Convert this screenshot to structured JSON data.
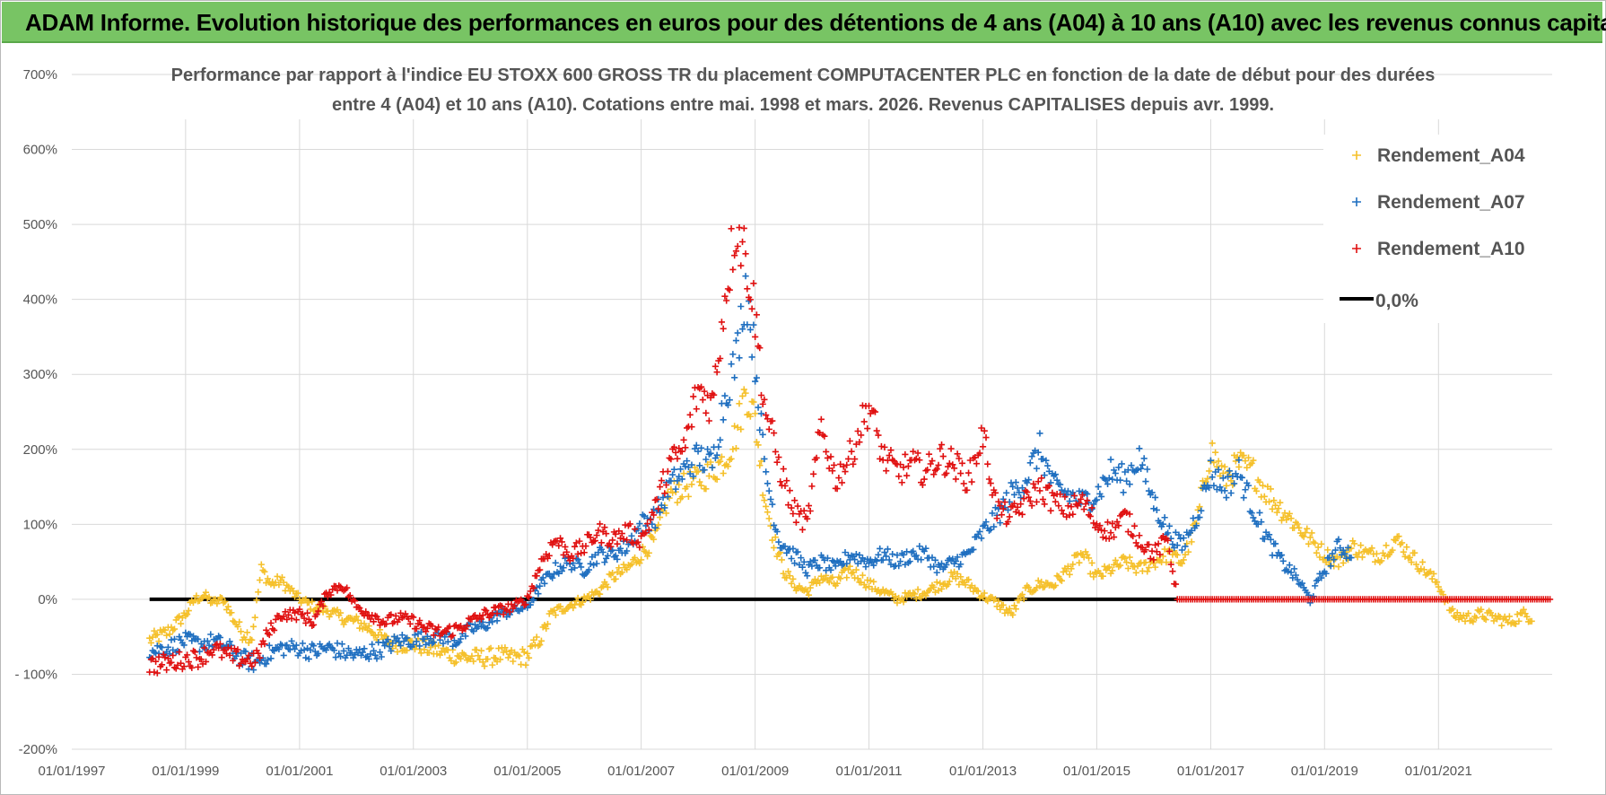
{
  "banner": {
    "title": "ADAM Informe. Evolution historique des performances en euros pour des détentions de 4 ans (A04) à 10 ans (A10) avec les revenus connus capitalisés"
  },
  "chart_data": {
    "type": "scatter",
    "title_line1": "Performance par rapport à l'indice EU STOXX 600 GROSS TR  du placement COMPUTACENTER PLC en fonction de la date de début pour des durées",
    "title_line2": "entre 4 (A04) et 10 ans (A10). Cotations entre mai. 1998 et mars. 2026. Revenus CAPITALISES depuis avr. 1999.",
    "x_axis": {
      "type": "date",
      "min": "1997-01-01",
      "max": "2022-12-31",
      "tick_labels": [
        "01/01/1997",
        "01/01/1999",
        "01/01/2001",
        "01/01/2003",
        "01/01/2005",
        "01/01/2007",
        "01/01/2009",
        "01/01/2011",
        "01/01/2013",
        "01/01/2015",
        "01/01/2017",
        "01/01/2019",
        "01/01/2021"
      ]
    },
    "y_axis": {
      "min": -200,
      "max": 700,
      "unit": "%",
      "tick_labels": [
        "700%",
        "600%",
        "500%",
        "400%",
        "300%",
        "200%",
        "100%",
        "0%",
        "- 100%",
        "-200%"
      ]
    },
    "grid": true,
    "legend_position": "top-right",
    "series": [
      {
        "name": "Rendement_A04",
        "color": "#f5c02a",
        "marker": "plus",
        "points": [
          [
            "1998-05-15",
            -55
          ],
          [
            "1998-09-01",
            -45
          ],
          [
            "1999-01-01",
            -20
          ],
          [
            "1999-03-01",
            0
          ],
          [
            "1999-05-01",
            5
          ],
          [
            "1999-07-01",
            -5
          ],
          [
            "1999-09-01",
            0
          ],
          [
            "1999-11-01",
            -25
          ],
          [
            "2000-01-01",
            -45
          ],
          [
            "2000-03-01",
            -50
          ],
          [
            "2000-05-01",
            40
          ],
          [
            "2000-07-01",
            20
          ],
          [
            "2000-09-01",
            25
          ],
          [
            "2001-01-01",
            0
          ],
          [
            "2001-04-01",
            -10
          ],
          [
            "2001-07-01",
            -15
          ],
          [
            "2001-10-01",
            -25
          ],
          [
            "2002-01-01",
            -30
          ],
          [
            "2002-04-01",
            -40
          ],
          [
            "2002-07-01",
            -55
          ],
          [
            "2002-10-01",
            -60
          ],
          [
            "2003-01-01",
            -60
          ],
          [
            "2003-04-01",
            -65
          ],
          [
            "2003-07-01",
            -70
          ],
          [
            "2003-10-01",
            -75
          ],
          [
            "2004-01-01",
            -78
          ],
          [
            "2004-04-01",
            -78
          ],
          [
            "2004-07-01",
            -75
          ],
          [
            "2004-10-01",
            -78
          ],
          [
            "2005-01-01",
            -76
          ],
          [
            "2005-04-01",
            -50
          ],
          [
            "2005-06-01",
            -20
          ],
          [
            "2005-09-01",
            -10
          ],
          [
            "2006-01-01",
            0
          ],
          [
            "2006-04-01",
            10
          ],
          [
            "2006-07-01",
            30
          ],
          [
            "2006-10-01",
            40
          ],
          [
            "2007-01-01",
            60
          ],
          [
            "2007-04-01",
            80
          ],
          [
            "2007-07-01",
            140
          ],
          [
            "2007-10-01",
            150
          ],
          [
            "2008-01-01",
            160
          ],
          [
            "2008-04-01",
            170
          ],
          [
            "2008-07-01",
            190
          ],
          [
            "2008-09-01",
            220
          ],
          [
            "2008-11-01",
            280
          ],
          [
            "2009-01-01",
            240
          ],
          [
            "2009-03-01",
            140
          ],
          [
            "2009-05-01",
            80
          ],
          [
            "2009-07-01",
            40
          ],
          [
            "2009-09-01",
            20
          ],
          [
            "2009-12-01",
            10
          ],
          [
            "2010-03-01",
            30
          ],
          [
            "2010-06-01",
            20
          ],
          [
            "2010-09-01",
            40
          ],
          [
            "2011-01-01",
            20
          ],
          [
            "2011-04-01",
            10
          ],
          [
            "2011-07-01",
            0
          ],
          [
            "2011-10-01",
            5
          ],
          [
            "2012-01-01",
            10
          ],
          [
            "2012-04-01",
            20
          ],
          [
            "2012-07-01",
            30
          ],
          [
            "2012-10-01",
            20
          ],
          [
            "2013-01-01",
            5
          ],
          [
            "2013-04-01",
            -5
          ],
          [
            "2013-07-01",
            -20
          ],
          [
            "2013-10-01",
            10
          ],
          [
            "2014-01-01",
            20
          ],
          [
            "2014-04-01",
            20
          ],
          [
            "2014-07-01",
            40
          ],
          [
            "2014-10-01",
            60
          ],
          [
            "2015-01-01",
            30
          ],
          [
            "2015-04-01",
            40
          ],
          [
            "2015-07-01",
            50
          ],
          [
            "2015-10-01",
            40
          ],
          [
            "2016-01-01",
            50
          ],
          [
            "2016-04-01",
            60
          ],
          [
            "2016-07-01",
            50
          ],
          [
            "2016-10-01",
            100
          ],
          [
            "2017-01-01",
            200
          ],
          [
            "2017-04-01",
            160
          ],
          [
            "2017-07-01",
            180
          ],
          [
            "2017-10-01",
            170
          ],
          [
            "2018-01-01",
            140
          ],
          [
            "2018-04-01",
            120
          ],
          [
            "2018-07-01",
            100
          ],
          [
            "2018-10-01",
            80
          ],
          [
            "2019-01-01",
            60
          ],
          [
            "2019-04-01",
            50
          ],
          [
            "2019-07-01",
            70
          ],
          [
            "2019-10-01",
            60
          ],
          [
            "2020-01-01",
            60
          ],
          [
            "2020-04-01",
            80
          ],
          [
            "2020-07-01",
            60
          ],
          [
            "2020-10-01",
            40
          ],
          [
            "2021-01-01",
            20
          ],
          [
            "2021-04-01",
            -20
          ],
          [
            "2021-07-01",
            -25
          ],
          [
            "2021-10-01",
            -20
          ],
          [
            "2022-01-01",
            -25
          ],
          [
            "2022-04-01",
            -30
          ],
          [
            "2022-07-01",
            -20
          ],
          [
            "2022-09-01",
            -25
          ]
        ]
      },
      {
        "name": "Rendement_A07",
        "color": "#1f6fc0",
        "marker": "plus",
        "points": [
          [
            "1998-05-15",
            -70
          ],
          [
            "1998-09-01",
            -65
          ],
          [
            "1999-01-01",
            -55
          ],
          [
            "1999-04-01",
            -60
          ],
          [
            "1999-07-01",
            -55
          ],
          [
            "1999-10-01",
            -65
          ],
          [
            "2000-01-01",
            -80
          ],
          [
            "2000-04-01",
            -85
          ],
          [
            "2000-06-01",
            -75
          ],
          [
            "2000-09-01",
            -65
          ],
          [
            "2001-01-01",
            -65
          ],
          [
            "2001-04-01",
            -70
          ],
          [
            "2001-07-01",
            -65
          ],
          [
            "2001-10-01",
            -70
          ],
          [
            "2002-01-01",
            -75
          ],
          [
            "2002-04-01",
            -70
          ],
          [
            "2002-07-01",
            -65
          ],
          [
            "2002-10-01",
            -55
          ],
          [
            "2003-01-01",
            -55
          ],
          [
            "2003-04-01",
            -50
          ],
          [
            "2003-07-01",
            -50
          ],
          [
            "2003-10-01",
            -55
          ],
          [
            "2004-01-01",
            -40
          ],
          [
            "2004-04-01",
            -35
          ],
          [
            "2004-07-01",
            -20
          ],
          [
            "2004-10-01",
            -15
          ],
          [
            "2005-01-01",
            -10
          ],
          [
            "2005-04-01",
            20
          ],
          [
            "2005-07-01",
            40
          ],
          [
            "2005-10-01",
            50
          ],
          [
            "2006-01-01",
            40
          ],
          [
            "2006-04-01",
            60
          ],
          [
            "2006-07-01",
            60
          ],
          [
            "2006-10-01",
            70
          ],
          [
            "2007-01-01",
            100
          ],
          [
            "2007-04-01",
            110
          ],
          [
            "2007-07-01",
            150
          ],
          [
            "2007-10-01",
            170
          ],
          [
            "2008-01-01",
            190
          ],
          [
            "2008-04-01",
            180
          ],
          [
            "2008-07-01",
            280
          ],
          [
            "2008-09-01",
            320
          ],
          [
            "2008-11-01",
            420
          ],
          [
            "2009-01-01",
            320
          ],
          [
            "2009-03-01",
            180
          ],
          [
            "2009-06-01",
            80
          ],
          [
            "2009-09-01",
            60
          ],
          [
            "2009-12-01",
            40
          ],
          [
            "2010-03-01",
            50
          ],
          [
            "2010-06-01",
            40
          ],
          [
            "2010-09-01",
            60
          ],
          [
            "2011-01-01",
            50
          ],
          [
            "2011-04-01",
            60
          ],
          [
            "2011-07-01",
            50
          ],
          [
            "2011-10-01",
            60
          ],
          [
            "2012-01-01",
            60
          ],
          [
            "2012-04-01",
            40
          ],
          [
            "2012-07-01",
            50
          ],
          [
            "2012-10-01",
            60
          ],
          [
            "2013-01-01",
            90
          ],
          [
            "2013-04-01",
            110
          ],
          [
            "2013-07-01",
            140
          ],
          [
            "2013-10-01",
            160
          ],
          [
            "2014-01-01",
            200
          ],
          [
            "2014-04-01",
            150
          ],
          [
            "2014-07-01",
            140
          ],
          [
            "2014-10-01",
            130
          ],
          [
            "2015-01-01",
            140
          ],
          [
            "2015-04-01",
            170
          ],
          [
            "2015-07-01",
            160
          ],
          [
            "2015-10-01",
            190
          ],
          [
            "2016-01-01",
            130
          ],
          [
            "2016-04-01",
            90
          ],
          [
            "2016-07-01",
            70
          ],
          [
            "2016-10-01",
            110
          ],
          [
            "2017-01-01",
            170
          ],
          [
            "2017-04-01",
            150
          ],
          [
            "2017-07-01",
            170
          ],
          [
            "2017-10-01",
            120
          ],
          [
            "2018-01-01",
            80
          ],
          [
            "2018-04-01",
            50
          ],
          [
            "2018-07-01",
            30
          ],
          [
            "2018-10-01",
            0
          ],
          [
            "2019-01-01",
            40
          ],
          [
            "2019-04-01",
            70
          ],
          [
            "2019-07-01",
            60
          ]
        ]
      },
      {
        "name": "Rendement_A10",
        "color": "#e01010",
        "marker": "plus",
        "points": [
          [
            "1998-05-15",
            -88
          ],
          [
            "1998-09-01",
            -85
          ],
          [
            "1999-01-01",
            -80
          ],
          [
            "1999-04-01",
            -78
          ],
          [
            "1999-07-01",
            -65
          ],
          [
            "1999-10-01",
            -75
          ],
          [
            "2000-01-01",
            -80
          ],
          [
            "2000-04-01",
            -80
          ],
          [
            "2000-06-01",
            -50
          ],
          [
            "2000-09-01",
            -20
          ],
          [
            "2001-01-01",
            -20
          ],
          [
            "2001-04-01",
            -30
          ],
          [
            "2001-07-01",
            10
          ],
          [
            "2001-10-01",
            20
          ],
          [
            "2002-01-01",
            -10
          ],
          [
            "2002-04-01",
            -20
          ],
          [
            "2002-07-01",
            -30
          ],
          [
            "2002-10-01",
            -25
          ],
          [
            "2003-01-01",
            -30
          ],
          [
            "2003-04-01",
            -40
          ],
          [
            "2003-07-01",
            -45
          ],
          [
            "2003-10-01",
            -40
          ],
          [
            "2004-01-01",
            -30
          ],
          [
            "2004-04-01",
            -20
          ],
          [
            "2004-07-01",
            -15
          ],
          [
            "2004-10-01",
            -10
          ],
          [
            "2005-01-01",
            0
          ],
          [
            "2005-04-01",
            50
          ],
          [
            "2005-07-01",
            80
          ],
          [
            "2005-10-01",
            60
          ],
          [
            "2006-01-01",
            70
          ],
          [
            "2006-04-01",
            90
          ],
          [
            "2006-07-01",
            80
          ],
          [
            "2006-10-01",
            90
          ],
          [
            "2007-01-01",
            80
          ],
          [
            "2007-04-01",
            120
          ],
          [
            "2007-07-01",
            180
          ],
          [
            "2007-10-01",
            200
          ],
          [
            "2008-01-01",
            280
          ],
          [
            "2008-04-01",
            260
          ],
          [
            "2008-07-01",
            420
          ],
          [
            "2008-09-01",
            500
          ],
          [
            "2008-11-01",
            460
          ],
          [
            "2009-01-01",
            380
          ],
          [
            "2009-03-01",
            260
          ],
          [
            "2009-06-01",
            180
          ],
          [
            "2009-09-01",
            120
          ],
          [
            "2009-12-01",
            100
          ],
          [
            "2010-03-01",
            230
          ],
          [
            "2010-06-01",
            160
          ],
          [
            "2010-09-01",
            190
          ],
          [
            "2011-01-01",
            260
          ],
          [
            "2011-04-01",
            190
          ],
          [
            "2011-07-01",
            170
          ],
          [
            "2011-10-01",
            180
          ],
          [
            "2012-01-01",
            170
          ],
          [
            "2012-04-01",
            190
          ],
          [
            "2012-07-01",
            180
          ],
          [
            "2012-10-01",
            160
          ],
          [
            "2013-01-01",
            220
          ],
          [
            "2013-04-01",
            120
          ],
          [
            "2013-07-01",
            110
          ],
          [
            "2013-10-01",
            130
          ],
          [
            "2014-01-01",
            150
          ],
          [
            "2014-04-01",
            130
          ],
          [
            "2014-07-01",
            120
          ],
          [
            "2014-10-01",
            130
          ],
          [
            "2015-01-01",
            100
          ],
          [
            "2015-04-01",
            90
          ],
          [
            "2015-07-01",
            110
          ],
          [
            "2015-10-01",
            80
          ],
          [
            "2016-01-01",
            60
          ],
          [
            "2016-04-01",
            80
          ],
          [
            "2016-06-01",
            0
          ],
          [
            "2022-12-31",
            0
          ]
        ]
      }
    ],
    "reference_line": {
      "name": "0,0%",
      "y": 0,
      "x_start": "1998-05-15",
      "x_end": "2016-06-01",
      "color": "#000000"
    }
  }
}
